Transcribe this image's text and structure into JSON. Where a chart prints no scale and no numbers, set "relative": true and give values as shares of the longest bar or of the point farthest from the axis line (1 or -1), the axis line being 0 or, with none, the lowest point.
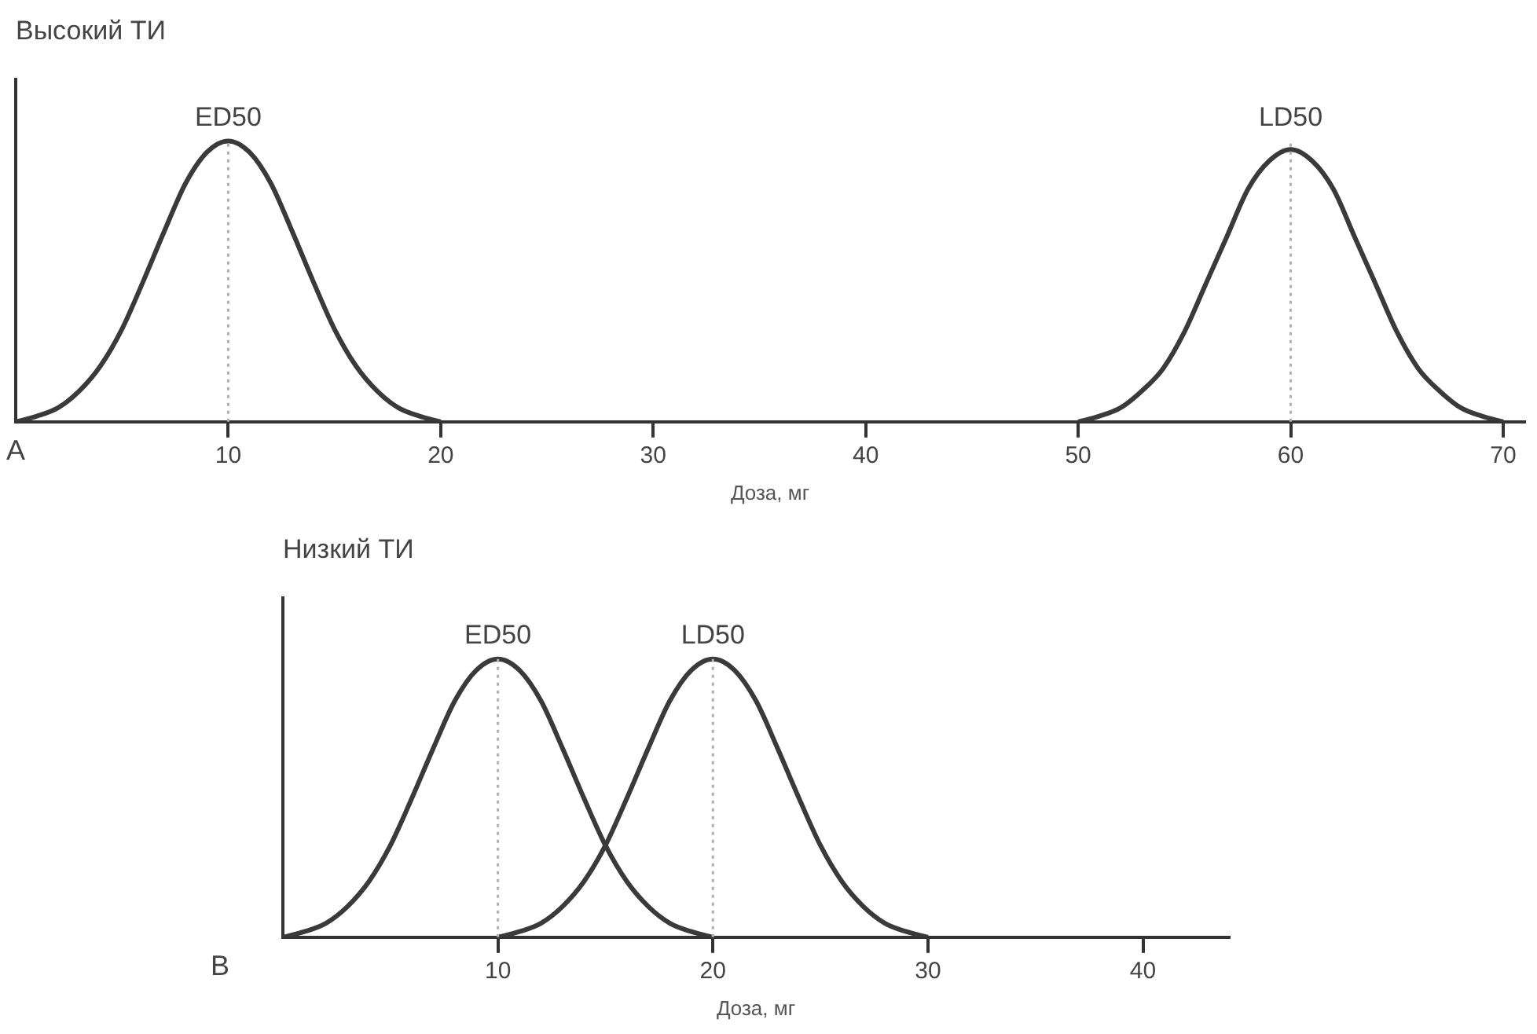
{
  "chart_data": [
    {
      "type": "line",
      "title": "Высокий ТИ",
      "xlabel": "Доза, мг",
      "relative": true,
      "xlim": [
        0,
        71
      ],
      "xticks": [
        10,
        20,
        30,
        40,
        50,
        60,
        70
      ],
      "grid": false,
      "legend": false,
      "annotations": [
        "A"
      ],
      "series": [
        {
          "color": "#3a3a3a",
          "x": [
            0,
            1,
            2,
            3,
            4,
            5,
            6,
            7,
            8,
            9,
            10,
            11,
            12,
            13,
            14,
            15,
            16,
            17,
            18,
            19,
            20
          ],
          "values": [
            0,
            0.02,
            0.05,
            0.11,
            0.2,
            0.33,
            0.5,
            0.68,
            0.85,
            0.96,
            1,
            0.96,
            0.85,
            0.68,
            0.5,
            0.33,
            0.2,
            0.11,
            0.05,
            0.02,
            0
          ]
        },
        {
          "color": "#3a3a3a",
          "x": [
            50,
            51,
            52,
            53,
            54,
            55,
            56,
            57,
            58,
            59,
            60,
            61,
            62,
            63,
            64,
            65,
            66,
            67,
            68,
            69,
            70
          ],
          "values": [
            0,
            0.02,
            0.05,
            0.11,
            0.19,
            0.32,
            0.49,
            0.66,
            0.83,
            0.93,
            0.97,
            0.93,
            0.83,
            0.66,
            0.49,
            0.32,
            0.19,
            0.11,
            0.05,
            0.02,
            0
          ]
        }
      ],
      "ref_lines": [
        {
          "axis": "x",
          "value": 10,
          "label": "ED50",
          "color": "#b0b0b0",
          "line_style": "dotted"
        },
        {
          "axis": "x",
          "value": 60,
          "label": "LD50",
          "color": "#b0b0b0",
          "line_style": "dotted"
        }
      ]
    },
    {
      "type": "line",
      "title": "Низкий ТИ",
      "xlabel": "Доза, мг",
      "relative": true,
      "xlim": [
        0,
        44
      ],
      "xticks": [
        10,
        20,
        30,
        40
      ],
      "grid": false,
      "legend": false,
      "annotations": [
        "B"
      ],
      "series": [
        {
          "color": "#3a3a3a",
          "x": [
            0,
            1,
            2,
            3,
            4,
            5,
            6,
            7,
            8,
            9,
            10,
            11,
            12,
            13,
            14,
            15,
            16,
            17,
            18,
            19,
            20
          ],
          "values": [
            0,
            0.02,
            0.05,
            0.11,
            0.2,
            0.33,
            0.5,
            0.68,
            0.85,
            0.96,
            1,
            0.96,
            0.85,
            0.68,
            0.5,
            0.33,
            0.2,
            0.11,
            0.05,
            0.02,
            0
          ]
        },
        {
          "color": "#3a3a3a",
          "x": [
            10,
            11,
            12,
            13,
            14,
            15,
            16,
            17,
            18,
            19,
            20,
            21,
            22,
            23,
            24,
            25,
            26,
            27,
            28,
            29,
            30
          ],
          "values": [
            0,
            0.02,
            0.05,
            0.11,
            0.2,
            0.33,
            0.5,
            0.68,
            0.85,
            0.96,
            1,
            0.96,
            0.85,
            0.68,
            0.5,
            0.33,
            0.2,
            0.11,
            0.05,
            0.02,
            0
          ]
        }
      ],
      "ref_lines": [
        {
          "axis": "x",
          "value": 10,
          "label": "ED50",
          "color": "#b0b0b0",
          "line_style": "dotted"
        },
        {
          "axis": "x",
          "value": 20,
          "label": "LD50",
          "color": "#b0b0b0",
          "line_style": "dotted"
        }
      ]
    }
  ]
}
